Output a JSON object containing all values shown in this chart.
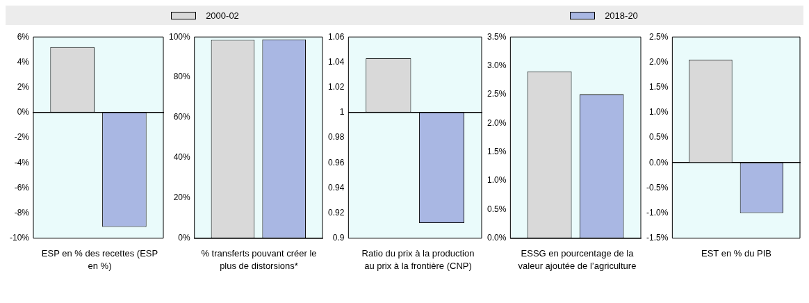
{
  "chart_data": [
    {
      "type": "bar",
      "xlabel": "ESP en % des recettes (ESP en %)",
      "categories": [
        null
      ],
      "legend": "top",
      "ylim": [
        -10,
        6
      ],
      "yticks": [
        {
          "value": -10,
          "label": "-10%"
        },
        {
          "value": -8,
          "label": "-8%"
        },
        {
          "value": -6,
          "label": "-6%"
        },
        {
          "value": -4,
          "label": "-4%"
        },
        {
          "value": -2,
          "label": "-2%"
        },
        {
          "value": 0,
          "label": "0%"
        },
        {
          "value": 2,
          "label": "2%"
        },
        {
          "value": 4,
          "label": "4%"
        },
        {
          "value": 6,
          "label": "6%"
        }
      ],
      "series": [
        {
          "name": "2000-02",
          "color": "#d9d9d9",
          "values": [
            5.2
          ]
        },
        {
          "name": "2018-20",
          "color": "#a9b7e3",
          "values": [
            -9.1
          ]
        }
      ]
    },
    {
      "type": "bar",
      "xlabel": "% transferts pouvant créer le plus de distorsions*",
      "categories": [
        null
      ],
      "ylim": [
        0,
        100
      ],
      "yticks": [
        {
          "value": 0,
          "label": "0%"
        },
        {
          "value": 20,
          "label": "20%"
        },
        {
          "value": 40,
          "label": "40%"
        },
        {
          "value": 60,
          "label": "60%"
        },
        {
          "value": 80,
          "label": "80%"
        },
        {
          "value": 100,
          "label": "100%"
        }
      ],
      "series": [
        {
          "color": "#d9d9d9",
          "values": [
            98.5
          ]
        },
        {
          "color": "#a9b7e3",
          "values": [
            98.8
          ]
        }
      ]
    },
    {
      "type": "bar",
      "xlabel": "Ratio du prix à la production au prix à la frontière (CNP)",
      "categories": [
        null
      ],
      "ylim": [
        0.9,
        1.06
      ],
      "yticks": [
        0.9,
        0.92,
        0.94,
        0.96,
        0.98,
        1,
        1.02,
        1.04,
        1.06
      ],
      "series": [
        {
          "color": "#d9d9d9",
          "base": [
            1
          ],
          "values": [
            0.043
          ]
        },
        {
          "color": "#a9b7e3",
          "base": [
            1
          ],
          "values": [
            -0.088
          ]
        }
      ]
    },
    {
      "type": "bar",
      "xlabel": "ESSG en pourcentage de la valeur ajoutée de l’agriculture",
      "categories": [
        null
      ],
      "ylim": [
        0,
        3.5
      ],
      "yticks": [
        {
          "value": 0,
          "label": "0.0%"
        },
        {
          "value": 0.5,
          "label": "0.5%"
        },
        {
          "value": 1,
          "label": "1.0%"
        },
        {
          "value": 1.5,
          "label": "1.5%"
        },
        {
          "value": 2,
          "label": "2.0%"
        },
        {
          "value": 2.5,
          "label": "2.5%"
        },
        {
          "value": 3,
          "label": "3.0%"
        },
        {
          "value": 3.5,
          "label": "3.5%"
        }
      ],
      "series": [
        {
          "color": "#d9d9d9",
          "values": [
            2.9
          ]
        },
        {
          "color": "#a9b7e3",
          "values": [
            2.5
          ]
        }
      ]
    },
    {
      "type": "bar",
      "xlabel": "EST en % du PIB",
      "categories": [
        null
      ],
      "ylim": [
        -1.5,
        2.5
      ],
      "yticks": [
        {
          "value": -1.5,
          "label": "-1.5%"
        },
        {
          "value": -1,
          "label": "-1.0%"
        },
        {
          "value": -0.5,
          "label": "-0.5%"
        },
        {
          "value": 0,
          "label": "0.0%"
        },
        {
          "value": 0.5,
          "label": "0.5%"
        },
        {
          "value": 1,
          "label": "1.0%"
        },
        {
          "value": 1.5,
          "label": "1.5%"
        },
        {
          "value": 2,
          "label": "2.0%"
        },
        {
          "value": 2.5,
          "label": "2.5%"
        }
      ],
      "series": [
        {
          "color": "#d9d9d9",
          "values": [
            2.05
          ]
        },
        {
          "color": "#a9b7e3",
          "values": [
            -1.0
          ]
        }
      ]
    }
  ]
}
